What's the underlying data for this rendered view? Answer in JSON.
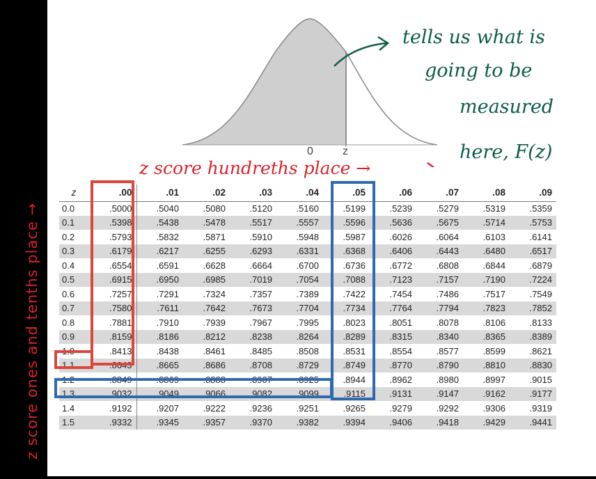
{
  "annotations": {
    "left_side": "z score ones and tenths place →",
    "top_header": "z score hundreths place →",
    "right_note": [
      "tells us what is",
      "going to be",
      "measured",
      "here, F(z)"
    ]
  },
  "curve_labels": {
    "zero": "0",
    "z": "z"
  },
  "table": {
    "headers": [
      "z",
      ".00",
      ".01",
      ".02",
      ".03",
      ".04",
      ".05",
      ".06",
      ".07",
      ".08",
      ".09"
    ],
    "rows": [
      [
        "0.0",
        ".5000",
        ".5040",
        ".5080",
        ".5120",
        ".5160",
        ".5199",
        ".5239",
        ".5279",
        ".5319",
        ".5359"
      ],
      [
        "0.1",
        ".5398",
        ".5438",
        ".5478",
        ".5517",
        ".5557",
        ".5596",
        ".5636",
        ".5675",
        ".5714",
        ".5753"
      ],
      [
        "0.2",
        ".5793",
        ".5832",
        ".5871",
        ".5910",
        ".5948",
        ".5987",
        ".6026",
        ".6064",
        ".6103",
        ".6141"
      ],
      [
        "0.3",
        ".6179",
        ".6217",
        ".6255",
        ".6293",
        ".6331",
        ".6368",
        ".6406",
        ".6443",
        ".6480",
        ".6517"
      ],
      [
        "0.4",
        ".6554",
        ".6591",
        ".6628",
        ".6664",
        ".6700",
        ".6736",
        ".6772",
        ".6808",
        ".6844",
        ".6879"
      ],
      [
        "0.5",
        ".6915",
        ".6950",
        ".6985",
        ".7019",
        ".7054",
        ".7088",
        ".7123",
        ".7157",
        ".7190",
        ".7224"
      ],
      [
        "0.6",
        ".7257",
        ".7291",
        ".7324",
        ".7357",
        ".7389",
        ".7422",
        ".7454",
        ".7486",
        ".7517",
        ".7549"
      ],
      [
        "0.7",
        ".7580",
        ".7611",
        ".7642",
        ".7673",
        ".7704",
        ".7734",
        ".7764",
        ".7794",
        ".7823",
        ".7852"
      ],
      [
        "0.8",
        ".7881",
        ".7910",
        ".7939",
        ".7967",
        ".7995",
        ".8023",
        ".8051",
        ".8078",
        ".8106",
        ".8133"
      ],
      [
        "0.9",
        ".8159",
        ".8186",
        ".8212",
        ".8238",
        ".8264",
        ".8289",
        ".8315",
        ".8340",
        ".8365",
        ".8389"
      ],
      [
        "1.0",
        ".8413",
        ".8438",
        ".8461",
        ".8485",
        ".8508",
        ".8531",
        ".8554",
        ".8577",
        ".8599",
        ".8621"
      ],
      [
        "1.1",
        ".8643",
        ".8665",
        ".8686",
        ".8708",
        ".8729",
        ".8749",
        ".8770",
        ".8790",
        ".8810",
        ".8830"
      ],
      [
        "1.2",
        ".8849",
        ".8869",
        ".8888",
        ".8907",
        ".8925",
        ".8944",
        ".8962",
        ".8980",
        ".8997",
        ".9015"
      ],
      [
        "1.3",
        ".9032",
        ".9049",
        ".9066",
        ".9082",
        ".9099",
        ".9115",
        ".9131",
        ".9147",
        ".9162",
        ".9177"
      ],
      [
        "1.4",
        ".9192",
        ".9207",
        ".9222",
        ".9236",
        ".9251",
        ".9265",
        ".9279",
        ".9292",
        ".9306",
        ".9319"
      ],
      [
        "1.5",
        ".9332",
        ".9345",
        ".9357",
        ".9370",
        ".9382",
        ".9394",
        ".9406",
        ".9418",
        ".9429",
        ".9441"
      ]
    ]
  },
  "colors": {
    "red_box": "#d8463c",
    "blue_box": "#2f6aae",
    "ink_green": "#0d5c4a",
    "ink_red": "#d8232a",
    "shade": "#d9d9d9"
  }
}
